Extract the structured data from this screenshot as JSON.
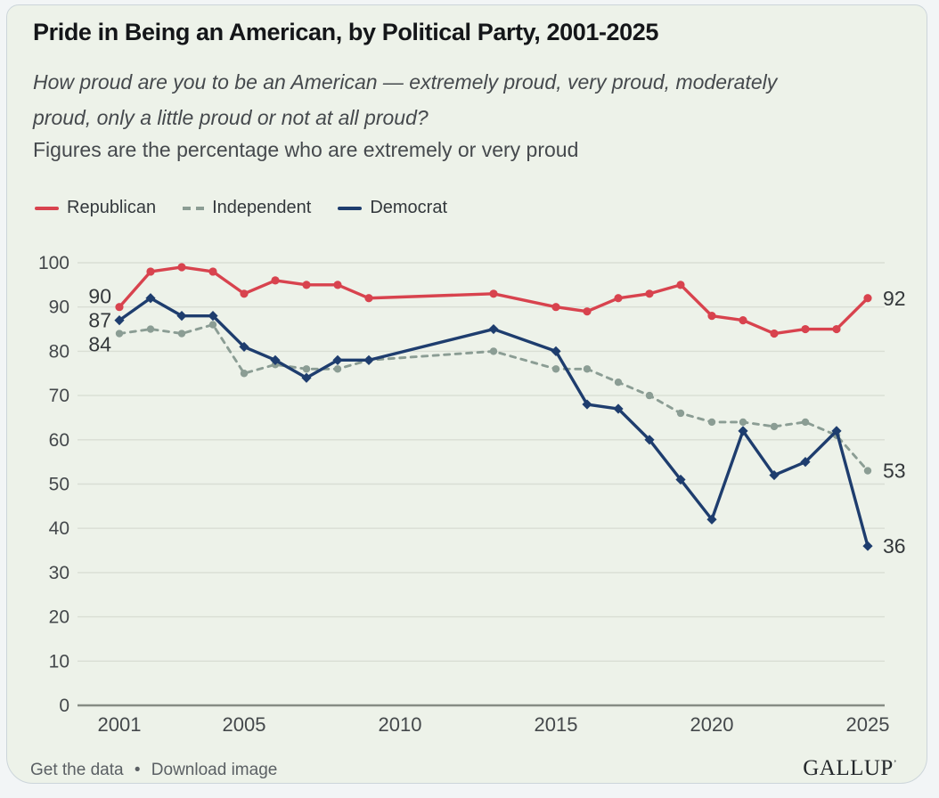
{
  "header": {
    "title": "Pride in Being an American, by Political Party, 2001-2025",
    "subtitle_line1": "How proud are you to be an American — extremely proud, very proud, moderately",
    "subtitle_line2": "proud, only a little proud or not at all proud?",
    "note": "Figures are the percentage who are extremely or very proud"
  },
  "legend": [
    {
      "label": "Republican",
      "color": "#d8434e",
      "style": "solid"
    },
    {
      "label": "Independent",
      "color": "#8b9d94",
      "style": "dashed"
    },
    {
      "label": "Democrat",
      "color": "#1e3d6e",
      "style": "solid"
    }
  ],
  "footer": {
    "get_data_label": "Get the data",
    "separator": "•",
    "download_label": "Download image",
    "brand": "GALLUP",
    "brand_mark": "’"
  },
  "chart_data": {
    "type": "line",
    "title": "Pride in Being an American, by Political Party, 2001-2025",
    "ylabel": "% extremely or very proud",
    "ylim": [
      0,
      100
    ],
    "grid": "horizontal",
    "legend_position": "top-left",
    "x": [
      2001,
      2002,
      2003,
      2004,
      2005,
      2006,
      2007,
      2008,
      2009,
      2013,
      2015,
      2016,
      2017,
      2018,
      2019,
      2020,
      2021,
      2022,
      2023,
      2024,
      2025
    ],
    "series": [
      {
        "name": "Republican",
        "color": "#d8434e",
        "dash": false,
        "marker": "circle",
        "values": [
          90,
          98,
          99,
          98,
          93,
          96,
          95,
          95,
          92,
          93,
          90,
          89,
          92,
          93,
          95,
          88,
          87,
          84,
          85,
          85,
          92
        ]
      },
      {
        "name": "Independent",
        "color": "#8b9d94",
        "dash": true,
        "marker": "circle",
        "values": [
          84,
          85,
          84,
          86,
          75,
          77,
          76,
          76,
          78,
          80,
          76,
          76,
          73,
          70,
          66,
          64,
          64,
          63,
          64,
          61,
          53
        ]
      },
      {
        "name": "Democrat",
        "color": "#1e3d6e",
        "dash": false,
        "marker": "diamond",
        "values": [
          87,
          92,
          88,
          88,
          81,
          78,
          74,
          78,
          78,
          85,
          80,
          68,
          67,
          60,
          51,
          42,
          62,
          52,
          55,
          62,
          36
        ]
      }
    ],
    "yticks": [
      0,
      10,
      20,
      30,
      40,
      50,
      60,
      70,
      80,
      90,
      100
    ],
    "xticks": [
      2001,
      2005,
      2010,
      2015,
      2020,
      2025
    ],
    "start_labels": [
      {
        "text": "90",
        "series": 0
      },
      {
        "text": "87",
        "series": 2
      },
      {
        "text": "84",
        "series": 1
      }
    ],
    "end_labels": [
      {
        "text": "92",
        "series": 0
      },
      {
        "text": "53",
        "series": 1
      },
      {
        "text": "36",
        "series": 2
      }
    ]
  }
}
